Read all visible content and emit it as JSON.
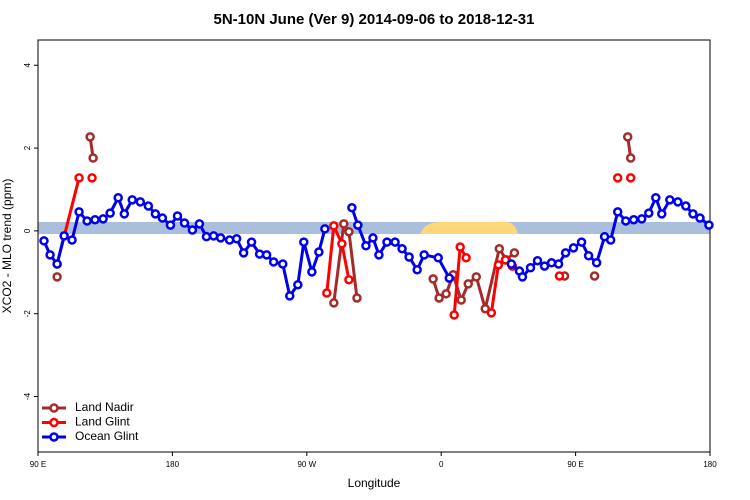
{
  "chart_data": {
    "type": "line",
    "title": "5N-10N June (Ver 9)   2014-09-06 to 2018-12-31",
    "x_label": "Longitude",
    "y_label": "XCO2 - MLO trend (ppm)",
    "xlim": [
      90,
      540
    ],
    "xticks": [
      {
        "value": 90,
        "label": "90 E"
      },
      {
        "value": 180,
        "label": "180"
      },
      {
        "value": 270,
        "label": "90 W"
      },
      {
        "value": 360,
        "label": "0"
      },
      {
        "value": 450,
        "label": "90 E"
      },
      {
        "value": 540,
        "label": "180"
      }
    ],
    "ylim": [
      -5.34,
      4.61
    ],
    "yticks": [
      -4,
      -2,
      0,
      2,
      4
    ],
    "legend": "bottom-left",
    "series": [
      {
        "name": "Land Nadir",
        "color": "#a52a2a",
        "x": [
          102.8,
          null,
          124.9,
          126.9,
          null,
          288.1,
          294.8,
          298.2,
          303.6,
          null,
          354.6,
          358.6,
          363.3,
          368.0,
          373.4,
          378.1,
          383.5,
          389.5,
          398.9,
          403.6,
          409.0,
          null,
          442.6,
          null,
          462.7,
          null,
          484.9,
          486.9
        ],
        "values": [
          -1.11,
          null,
          2.27,
          1.76,
          null,
          -1.74,
          0.17,
          -0.02,
          -1.62,
          null,
          -1.16,
          -1.62,
          -1.52,
          -1.06,
          -1.67,
          -1.28,
          -1.11,
          -1.88,
          -0.43,
          -0.7,
          -0.53,
          null,
          -1.09,
          null,
          -1.09,
          null,
          2.27,
          1.76
        ]
      },
      {
        "name": "Land Glint",
        "color": "#ff0000",
        "x": [
          102.8,
          117.5,
          null,
          126.2,
          null,
          283.4,
          288.1,
          293.5,
          298.2,
          null,
          368.7,
          372.7,
          376.7,
          null,
          393.6,
          398.3,
          403.0,
          407.7,
          null,
          439.2,
          null,
          478.2,
          null,
          486.9
        ],
        "values": [
          -0.8,
          1.28,
          null,
          1.28,
          null,
          -1.5,
          0.12,
          -0.31,
          -1.18,
          null,
          -2.03,
          -0.39,
          -0.65,
          null,
          -1.98,
          -0.82,
          -0.7,
          -0.85,
          null,
          -1.09,
          null,
          1.28,
          null,
          1.28
        ]
      },
      {
        "name": "Ocean Glint",
        "color": "#0000ee",
        "x": [
          94.0,
          98.1,
          102.8,
          107.5,
          112.8,
          117.5,
          122.9,
          128.2,
          133.6,
          138.3,
          143.7,
          147.8,
          153.1,
          158.5,
          163.9,
          168.6,
          173.3,
          178.7,
          183.4,
          188.1,
          193.4,
          198.1,
          202.8,
          207.6,
          212.3,
          218.3,
          223.0,
          227.7,
          233.0,
          238.4,
          243.1,
          247.8,
          253.9,
          258.6,
          264.0,
          268.0,
          273.4,
          278.1,
          282.1,
          null,
          300.2,
          304.2,
          309.6,
          314.3,
          318.3,
          323.7,
          329.1,
          333.8,
          338.5,
          343.9,
          348.6,
          358.0,
          365.4,
          null,
          407.0,
          412.4,
          414.4,
          419.8,
          424.5,
          429.2,
          433.9,
          438.6,
          443.3,
          448.6,
          454.0,
          458.7,
          464.1,
          469.4,
          473.5,
          478.2,
          483.6,
          488.9,
          494.3,
          499.0,
          503.7,
          507.7,
          513.1,
          518.5,
          523.8,
          528.6,
          533.3,
          539.3
        ],
        "values": [
          -0.24,
          -0.58,
          -0.8,
          -0.12,
          -0.22,
          0.46,
          0.24,
          0.27,
          0.29,
          0.43,
          0.8,
          0.41,
          0.75,
          0.7,
          0.6,
          0.41,
          0.31,
          0.14,
          0.36,
          0.19,
          0.02,
          0.17,
          -0.14,
          -0.12,
          -0.17,
          -0.22,
          -0.19,
          -0.53,
          -0.27,
          -0.56,
          -0.58,
          -0.75,
          -0.8,
          -1.57,
          -1.3,
          -0.27,
          -0.99,
          -0.51,
          0.05,
          null,
          0.56,
          0.14,
          -0.36,
          -0.17,
          -0.58,
          -0.27,
          -0.27,
          -0.43,
          -0.63,
          -0.94,
          -0.58,
          -0.65,
          -1.14,
          null,
          -0.8,
          -0.97,
          -1.11,
          -0.89,
          -0.72,
          -0.85,
          -0.77,
          -0.8,
          -0.53,
          -0.41,
          -0.27,
          -0.6,
          -0.77,
          -0.14,
          -0.22,
          0.46,
          0.24,
          0.27,
          0.29,
          0.43,
          0.8,
          0.41,
          0.75,
          0.7,
          0.6,
          0.41,
          0.31,
          0.14
        ]
      }
    ]
  }
}
